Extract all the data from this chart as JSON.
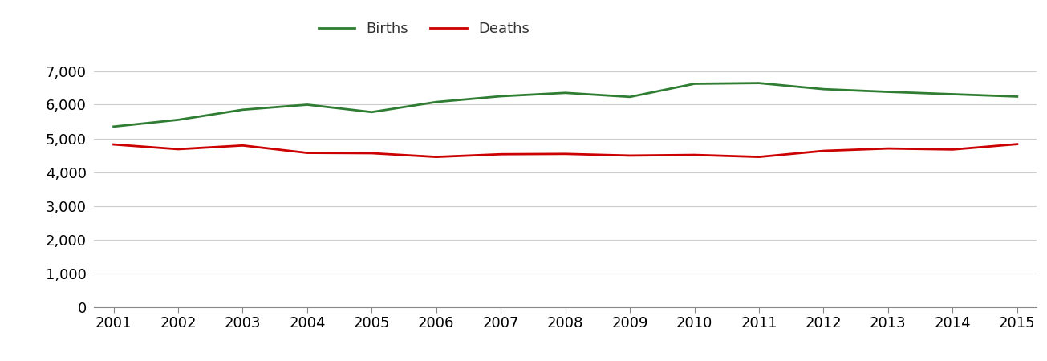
{
  "years": [
    2001,
    2002,
    2003,
    2004,
    2005,
    2006,
    2007,
    2008,
    2009,
    2010,
    2011,
    2012,
    2013,
    2014,
    2015
  ],
  "births": [
    5350,
    5550,
    5850,
    6000,
    5780,
    6080,
    6250,
    6350,
    6230,
    6620,
    6640,
    6460,
    6380,
    6310,
    6240
  ],
  "deaths": [
    4820,
    4680,
    4790,
    4570,
    4560,
    4450,
    4530,
    4540,
    4490,
    4510,
    4450,
    4630,
    4700,
    4670,
    4830
  ],
  "births_color": "#2e7d32",
  "deaths_color": "#cc0000",
  "background_color": "#ffffff",
  "grid_color": "#cccccc",
  "line_width": 2.0,
  "ylim": [
    0,
    7500
  ],
  "yticks": [
    0,
    1000,
    2000,
    3000,
    4000,
    5000,
    6000,
    7000
  ],
  "legend_labels": [
    "Births",
    "Deaths"
  ],
  "tick_fontsize": 13,
  "legend_fontsize": 13
}
